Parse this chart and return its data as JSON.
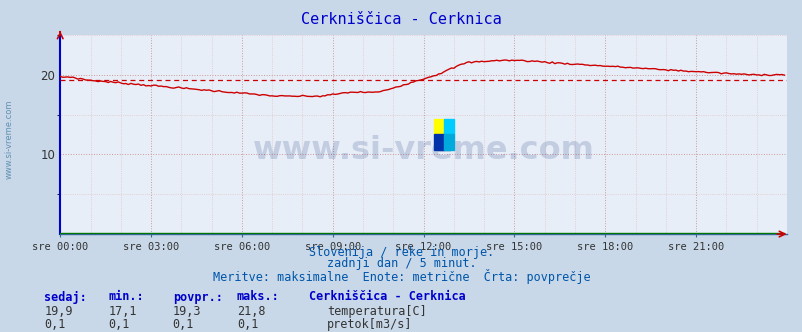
{
  "title": "Cerkniščica - Cerknica",
  "title_color": "#0000cc",
  "bg_color": "#c8d8e8",
  "plot_bg_color": "#e8eef8",
  "grid_color_major": "#cc9999",
  "grid_color_minor": "#ddbbbb",
  "xlabel_ticks": [
    "sre 00:00",
    "sre 03:00",
    "sre 06:00",
    "sre 09:00",
    "sre 12:00",
    "sre 15:00",
    "sre 18:00",
    "sre 21:00"
  ],
  "yticks": [
    0,
    10,
    20
  ],
  "ylim": [
    0,
    25
  ],
  "xlim": [
    0,
    287
  ],
  "temp_color": "#cc0000",
  "flow_color": "#007700",
  "avg_line_color": "#cc0000",
  "watermark_text": "www.si-vreme.com",
  "watermark_color": "#1a3a7a",
  "watermark_alpha": 0.18,
  "subtitle1": "Slovenija / reke in morje.",
  "subtitle2": "zadnji dan / 5 minut.",
  "subtitle3": "Meritve: maksimalne  Enote: metrične  Črta: povprečje",
  "subtitle_color": "#0055aa",
  "left_label": "www.si-vreme.com",
  "left_label_color": "#5588aa",
  "table_header": [
    "sedaj:",
    "min.:",
    "povpr.:",
    "maks.:",
    "Cerkniščica - Cerknica"
  ],
  "table_row1": [
    "19,9",
    "17,1",
    "19,3",
    "21,8",
    "temperatura[C]"
  ],
  "table_row2": [
    "0,1",
    "0,1",
    "0,1",
    "0,1",
    "pretok[m3/s]"
  ],
  "table_color": "#0000cc",
  "n_points": 288,
  "avg_temp": 19.3,
  "flow_value": 0.1,
  "left_spine_color": "#0000cc",
  "bottom_spine_color": "#336699"
}
